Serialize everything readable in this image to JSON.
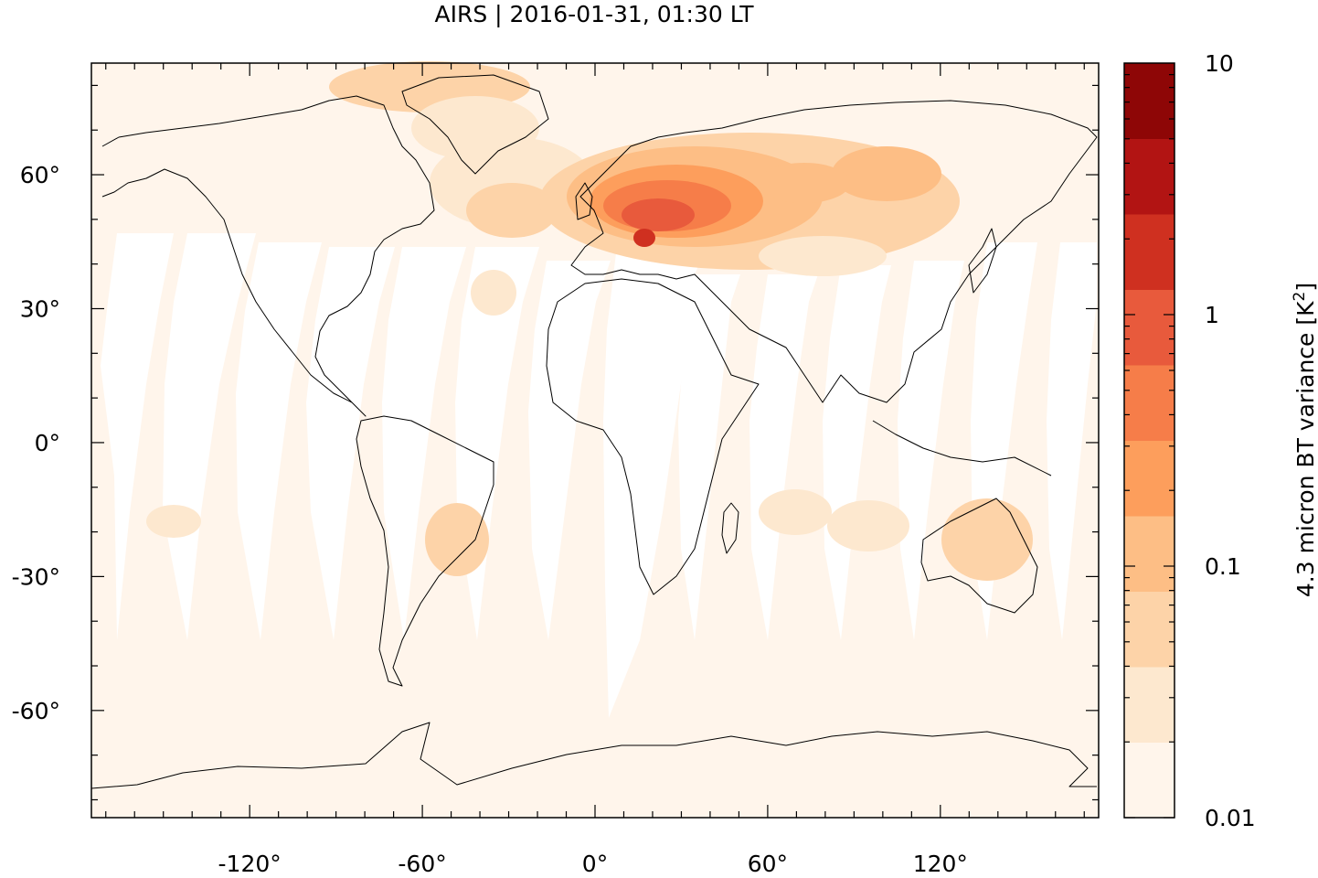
{
  "title": "AIRS | 2016-01-31, 01:30 LT",
  "map": {
    "lon_ticks": [
      {
        "value": -120,
        "label": "-120°"
      },
      {
        "value": -60,
        "label": "-60°"
      },
      {
        "value": 0,
        "label": "0°"
      },
      {
        "value": 60,
        "label": "60°"
      },
      {
        "value": 120,
        "label": "120°"
      }
    ],
    "lat_ticks": [
      {
        "value": 60,
        "label": "60°"
      },
      {
        "value": 30,
        "label": "30°"
      },
      {
        "value": 0,
        "label": "0°"
      },
      {
        "value": -30,
        "label": "-30°"
      },
      {
        "value": -60,
        "label": "-60°"
      }
    ],
    "lon_range": [
      -175,
      175
    ],
    "lat_range": [
      -84,
      85
    ],
    "background_color": "#fff5eb"
  },
  "colorbar": {
    "label_main": "4.3 micron BT variance [K",
    "label_sup": "2",
    "label_end": "]",
    "scale": "log",
    "range": [
      0.01,
      10
    ],
    "tick_labels": [
      {
        "value": 10,
        "label": "10"
      },
      {
        "value": 1,
        "label": "1"
      },
      {
        "value": 0.1,
        "label": "0.1"
      },
      {
        "value": 0.01,
        "label": "0.01"
      }
    ],
    "bands": [
      "#fff5eb",
      "#fde8cf",
      "#fdd3a8",
      "#fdbe85",
      "#fd9e5c",
      "#f67d49",
      "#e85a3c",
      "#cf3020",
      "#b21413",
      "#8e0606"
    ]
  }
}
